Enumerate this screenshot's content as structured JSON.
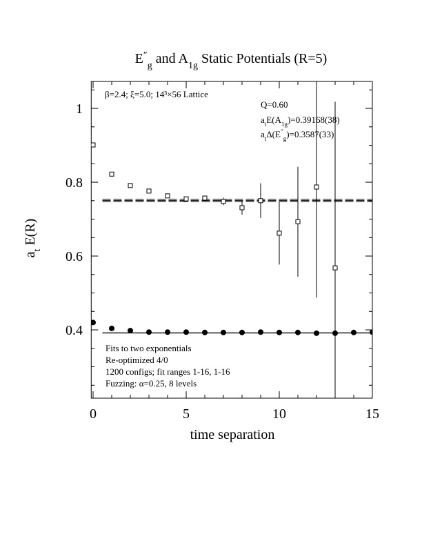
{
  "chart_data": {
    "type": "scatter",
    "title": [
      {
        "text": "E"
      },
      {
        "text": "″",
        "sup": true
      },
      {
        "text": "g",
        "sub": true
      },
      {
        "text": "  and  A"
      },
      {
        "text": "1g",
        "sub": true
      },
      {
        "text": " Static Potentials (R=5)"
      }
    ],
    "xlabel": [
      {
        "text": "time separation"
      }
    ],
    "ylabel": [
      {
        "text": "a"
      },
      {
        "text": "t",
        "sub": true
      },
      {
        "text": " E(R)"
      }
    ],
    "xlim": [
      -0.1,
      15
    ],
    "ylim": [
      0.215,
      1.073
    ],
    "xticks": [
      0,
      5,
      10,
      15
    ],
    "yticks": [
      0.4,
      0.6,
      0.8,
      1
    ],
    "xminor": [
      1,
      2,
      3,
      4,
      6,
      7,
      8,
      9,
      11,
      12,
      13,
      14
    ],
    "yminor": [
      0.25,
      0.3,
      0.35,
      0.45,
      0.5,
      0.55,
      0.65,
      0.7,
      0.75,
      0.85,
      0.9,
      0.95,
      1.05
    ],
    "series": [
      {
        "marker": "open-square",
        "color": "#000000",
        "x": [
          0,
          1,
          2,
          3,
          4,
          5,
          6,
          7,
          8,
          9,
          10,
          11,
          12,
          13
        ],
        "values": [
          0.901,
          0.822,
          0.791,
          0.776,
          0.763,
          0.755,
          0.757,
          0.748,
          0.731,
          0.75,
          0.662,
          0.693,
          0.787,
          0.568
        ],
        "errors": [
          0.002,
          0.002,
          0.002,
          0.003,
          0.003,
          0.003,
          0.004,
          0.01,
          0.019,
          0.047,
          0.085,
          0.149,
          0.3,
          0.45
        ]
      },
      {
        "marker": "filled-circle",
        "color": "#000000",
        "x": [
          0,
          1,
          2,
          3,
          4,
          5,
          6,
          7,
          8,
          9,
          10,
          11,
          12,
          13,
          14,
          15
        ],
        "values": [
          0.42,
          0.404,
          0.398,
          0.394,
          0.394,
          0.394,
          0.393,
          0.393,
          0.393,
          0.394,
          0.393,
          0.393,
          0.391,
          0.391,
          0.393,
          0.394
        ]
      }
    ],
    "fits": [
      {
        "value": 0.7504,
        "error": 0.0033,
        "dashed": true,
        "x": [
          0.5,
          15
        ]
      },
      {
        "value": 0.3917,
        "error": 0.0004,
        "dashed": false,
        "x": [
          0.5,
          15
        ]
      }
    ],
    "annotations": [
      [
        {
          "text": "β=2.4; ξ=5.0; 14³×56 Lattice"
        }
      ],
      [
        {
          "text": "Q=0.60"
        }
      ],
      [
        {
          "text": "a"
        },
        {
          "text": "t",
          "sub": true
        },
        {
          "text": "E(A"
        },
        {
          "text": "1g",
          "sub": true
        },
        {
          "text": ")=0.39168(38)"
        }
      ],
      [
        {
          "text": "a"
        },
        {
          "text": "t",
          "sub": true
        },
        {
          "text": "Δ(E"
        },
        {
          "text": "″",
          "sup": true
        },
        {
          "text": "g",
          "sub": true
        },
        {
          "text": ")=0.3587(33)"
        }
      ],
      [
        {
          "text": "Fits to two exponentials"
        }
      ],
      [
        {
          "text": "Re-optimized 4/0"
        }
      ],
      [
        {
          "text": "1200 configs; fit ranges 1-16, 1-16"
        }
      ],
      [
        {
          "text": "Fuzzing: α=0.25, 8 levels"
        }
      ]
    ]
  }
}
